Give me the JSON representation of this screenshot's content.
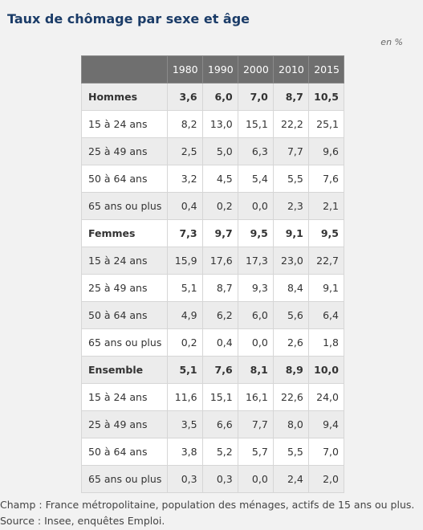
{
  "title": "Taux de chômage par sexe et âge",
  "unit": "en %",
  "table": {
    "headers": [
      "",
      "1980",
      "1990",
      "2000",
      "2010",
      "2015"
    ],
    "rows": [
      {
        "label": "Hommes",
        "group": true,
        "values": [
          "3,6",
          "6,0",
          "7,0",
          "8,7",
          "10,5"
        ]
      },
      {
        "label": "15 à 24 ans",
        "group": false,
        "values": [
          "8,2",
          "13,0",
          "15,1",
          "22,2",
          "25,1"
        ]
      },
      {
        "label": "25 à 49 ans",
        "group": false,
        "values": [
          "2,5",
          "5,0",
          "6,3",
          "7,7",
          "9,6"
        ]
      },
      {
        "label": "50 à 64 ans",
        "group": false,
        "values": [
          "3,2",
          "4,5",
          "5,4",
          "5,5",
          "7,6"
        ]
      },
      {
        "label": "65 ans ou plus",
        "group": false,
        "values": [
          "0,4",
          "0,2",
          "0,0",
          "2,3",
          "2,1"
        ]
      },
      {
        "label": "Femmes",
        "group": true,
        "values": [
          "7,3",
          "9,7",
          "9,5",
          "9,1",
          "9,5"
        ]
      },
      {
        "label": "15 à 24 ans",
        "group": false,
        "values": [
          "15,9",
          "17,6",
          "17,3",
          "23,0",
          "22,7"
        ]
      },
      {
        "label": "25 à 49 ans",
        "group": false,
        "values": [
          "5,1",
          "8,7",
          "9,3",
          "8,4",
          "9,1"
        ]
      },
      {
        "label": "50 à 64 ans",
        "group": false,
        "values": [
          "4,9",
          "6,2",
          "6,0",
          "5,6",
          "6,4"
        ]
      },
      {
        "label": "65 ans ou plus",
        "group": false,
        "values": [
          "0,2",
          "0,4",
          "0,0",
          "2,6",
          "1,8"
        ]
      },
      {
        "label": "Ensemble",
        "group": true,
        "values": [
          "5,1",
          "7,6",
          "8,1",
          "8,9",
          "10,0"
        ]
      },
      {
        "label": "15 à 24 ans",
        "group": false,
        "values": [
          "11,6",
          "15,1",
          "16,1",
          "22,6",
          "24,0"
        ]
      },
      {
        "label": "25 à 49 ans",
        "group": false,
        "values": [
          "3,5",
          "6,6",
          "7,7",
          "8,0",
          "9,4"
        ]
      },
      {
        "label": "50 à 64 ans",
        "group": false,
        "values": [
          "3,8",
          "5,2",
          "5,7",
          "5,5",
          "7,0"
        ]
      },
      {
        "label": "65 ans ou plus",
        "group": false,
        "values": [
          "0,3",
          "0,3",
          "0,0",
          "2,4",
          "2,0"
        ]
      }
    ]
  },
  "notes": {
    "champ": "Champ : France métropolitaine, population des ménages, actifs de 15 ans ou plus.",
    "source": "Source : Insee, enquêtes Emploi."
  },
  "colors": {
    "title": "#1b3c68",
    "header_bg": "#6f6f6f",
    "row_alt": "#ececec"
  }
}
